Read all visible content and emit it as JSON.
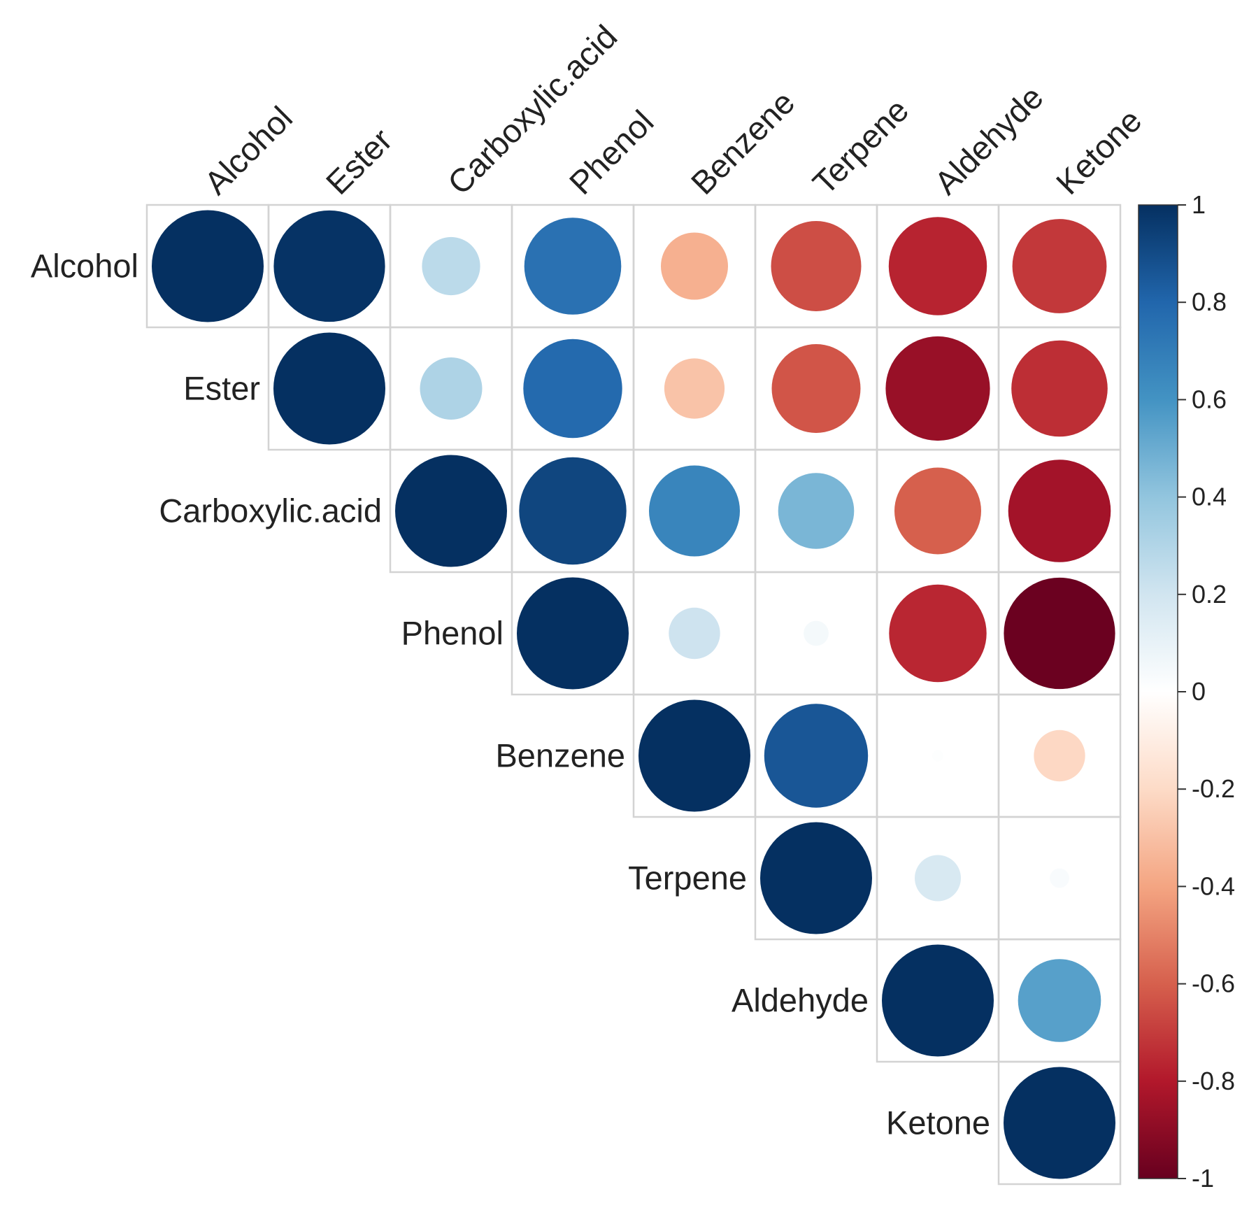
{
  "chart_data": {
    "type": "heatmap",
    "style": "corrplot-upper-circles",
    "title": "",
    "variables": [
      "Alcohol",
      "Ester",
      "Carboxylic.acid",
      "Phenol",
      "Benzene",
      "Terpene",
      "Aldehyde",
      "Ketone"
    ],
    "matrix": [
      [
        1.0,
        0.99,
        0.27,
        0.75,
        -0.36,
        -0.65,
        -0.77,
        -0.71
      ],
      [
        0.99,
        1.0,
        0.31,
        0.78,
        -0.29,
        -0.63,
        -0.87,
        -0.74
      ],
      [
        0.27,
        0.31,
        1.0,
        0.92,
        0.66,
        0.46,
        -0.6,
        -0.84
      ],
      [
        0.75,
        0.78,
        0.92,
        1.0,
        0.21,
        0.05,
        -0.76,
        -0.99
      ],
      [
        -0.36,
        -0.29,
        0.66,
        0.21,
        1.0,
        0.86,
        0.01,
        -0.21
      ],
      [
        -0.65,
        -0.63,
        0.46,
        0.05,
        0.86,
        1.0,
        0.17,
        0.03
      ],
      [
        -0.77,
        -0.87,
        -0.6,
        -0.76,
        0.01,
        0.17,
        1.0,
        0.55
      ],
      [
        -0.71,
        -0.74,
        -0.84,
        -0.99,
        -0.21,
        0.03,
        0.55,
        1.0
      ]
    ],
    "colorbar": {
      "range": [
        -1,
        1
      ],
      "ticks": [
        "1",
        "0.8",
        "0.6",
        "0.4",
        "0.2",
        "0",
        "-0.2",
        "-0.4",
        "-0.6",
        "-0.8",
        "-1"
      ],
      "palette": [
        "#67001F",
        "#B2182B",
        "#D6604D",
        "#F4A582",
        "#FDDBC7",
        "#FFFFFF",
        "#D1E5F0",
        "#92C5DE",
        "#4393C3",
        "#2166AC",
        "#053061"
      ]
    }
  }
}
